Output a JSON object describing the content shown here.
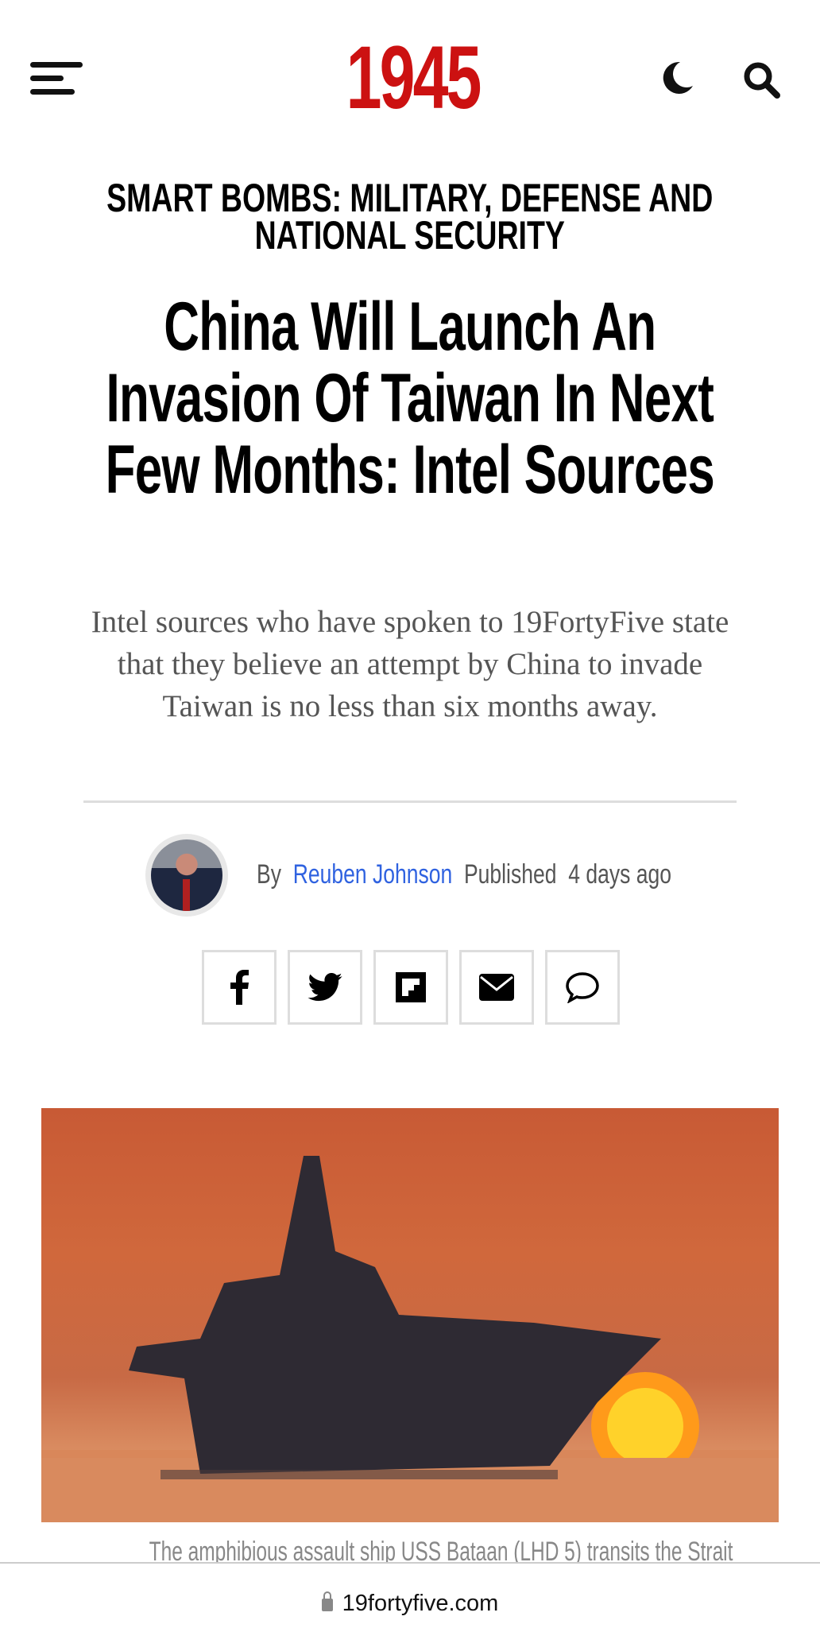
{
  "header": {
    "logo": "1945",
    "icons": [
      "menu-icon",
      "moon-icon",
      "search-icon"
    ],
    "logo_color": "#cc1111"
  },
  "article": {
    "category": "SMART BOMBS: MILITARY, DEFENSE AND NATIONAL SECURITY",
    "title": "China Will Launch An Invasion Of Taiwan In Next Few Months: Intel Sources",
    "subtitle": "Intel sources who have spoken to 19FortyFive state that they believe an attempt by China to invade Taiwan is no less than six months away.",
    "byline": {
      "by": "By",
      "author": "Reuben Johnson",
      "published_label": "Published",
      "published": "4 days ago",
      "author_color": "#2f62e0"
    },
    "share": [
      "facebook-icon",
      "twitter-icon",
      "flipboard-icon",
      "email-icon",
      "comment-icon"
    ],
    "caption": "The amphibious assault ship USS Bataan (LHD 5) transits the Strait"
  },
  "browser": {
    "url": "19fortyfive.com"
  }
}
